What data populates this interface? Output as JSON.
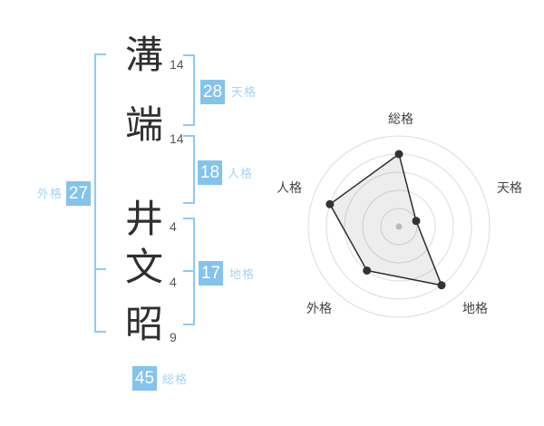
{
  "name": {
    "characters": [
      {
        "char": "溝",
        "strokes": "14",
        "part": "surname"
      },
      {
        "char": "端",
        "strokes": "14",
        "part": "surname"
      },
      {
        "char": "井",
        "strokes": "4",
        "part": "given"
      },
      {
        "char": "文",
        "strokes": "4",
        "part": "given"
      },
      {
        "char": "昭",
        "strokes": "9",
        "part": "given"
      }
    ]
  },
  "categories": {
    "tenkaku": {
      "label": "天格",
      "value": "28"
    },
    "jinkaku": {
      "label": "人格",
      "value": "18"
    },
    "chikaku": {
      "label": "地格",
      "value": "17"
    },
    "gaikaku": {
      "label": "外格",
      "value": "27"
    },
    "soukaku": {
      "label": "総格",
      "value": "45"
    }
  },
  "colors": {
    "badge_background": "#84C3EC",
    "badge_text": "#FFFFFF",
    "category_label_text": "#A6D4F4",
    "bracket_line": "#8ECBF2",
    "kanji_text": "#2F2F2F",
    "stroke_count_text": "#555555",
    "radar_ring": "#DCDCDC",
    "radar_polygon_stroke": "#2B2B2B",
    "radar_vertex_dot": "#333333",
    "radar_center_dot": "#C9C9C9"
  },
  "chart_data": {
    "type": "radar",
    "categories": [
      "総格",
      "天格",
      "地格",
      "外格",
      "人格"
    ],
    "values": [
      4,
      1,
      4,
      3,
      4
    ],
    "max": 5,
    "rings": 5,
    "title": "",
    "legend": "none",
    "grid": "concentric-circles",
    "start_angle_deg": -90,
    "direction": "clockwise"
  }
}
